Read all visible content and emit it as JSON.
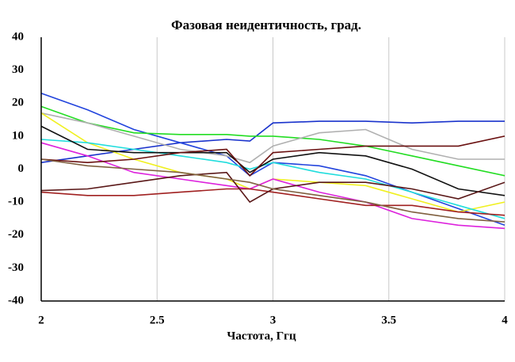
{
  "chart_data": {
    "type": "line",
    "title": "Фазовая неидентичность, град.",
    "x_label": "Частота, Ггц",
    "x": [
      2,
      2.2,
      2.4,
      2.6,
      2.8,
      2.9,
      3,
      3.2,
      3.4,
      3.6,
      3.8,
      4
    ],
    "xlim": [
      2,
      4
    ],
    "xticks": [
      2,
      2.5,
      3,
      3.5,
      4
    ],
    "ylim": [
      -40,
      40
    ],
    "yticks": [
      40,
      30,
      20,
      10,
      0,
      -10,
      -20,
      -30,
      -40
    ],
    "grid": true,
    "series": [
      {
        "color": "#1a33cc",
        "values": [
          2,
          4,
          6,
          8,
          9,
          8.5,
          14,
          14.5,
          14.5,
          14,
          14.5,
          14.5
        ]
      },
      {
        "color": "#2244dd",
        "values": [
          23,
          18,
          12,
          8,
          4,
          -2,
          2,
          1,
          -2,
          -7,
          -12,
          -17
        ]
      },
      {
        "color": "#22dd22",
        "values": [
          19,
          14,
          11,
          10.5,
          10.5,
          10,
          10,
          9,
          7,
          4,
          1,
          -2
        ]
      },
      {
        "color": "#b0b0b0",
        "values": [
          17,
          14,
          10,
          6,
          4,
          2,
          7,
          11,
          12,
          6,
          3,
          3
        ]
      },
      {
        "color": "#f0f020",
        "values": [
          17,
          8,
          3,
          -1,
          -3,
          -6,
          -3,
          -4,
          -5,
          -9,
          -13,
          -10
        ]
      },
      {
        "color": "#22dddd",
        "values": [
          9,
          8,
          6,
          4,
          2,
          0,
          2,
          -1,
          -3,
          -7,
          -11,
          -15
        ]
      },
      {
        "color": "#dd22dd",
        "values": [
          8,
          4,
          -1,
          -3,
          -5,
          -6,
          -3,
          -7,
          -10,
          -15,
          -17,
          -18
        ]
      },
      {
        "color": "#111111",
        "values": [
          13,
          6,
          5,
          5,
          5,
          -1,
          3,
          5,
          4,
          0,
          -6,
          -8
        ]
      },
      {
        "color": "#6a1010",
        "values": [
          3,
          2,
          3,
          5,
          6,
          -2,
          5,
          6,
          7,
          7,
          7,
          10
        ]
      },
      {
        "color": "#a02020",
        "values": [
          -7,
          -8,
          -8,
          -7,
          -6,
          -6,
          -7,
          -9,
          -11,
          -11,
          -13,
          -14
        ]
      },
      {
        "color": "#5a1818",
        "values": [
          -6.5,
          -6,
          -4,
          -2,
          -1,
          -10,
          -6,
          -4,
          -4,
          -6,
          -9,
          -4
        ]
      },
      {
        "color": "#806040",
        "values": [
          3,
          1,
          0,
          -1,
          -3,
          -4,
          -6,
          -8,
          -10,
          -13,
          -15,
          -16
        ]
      }
    ]
  }
}
